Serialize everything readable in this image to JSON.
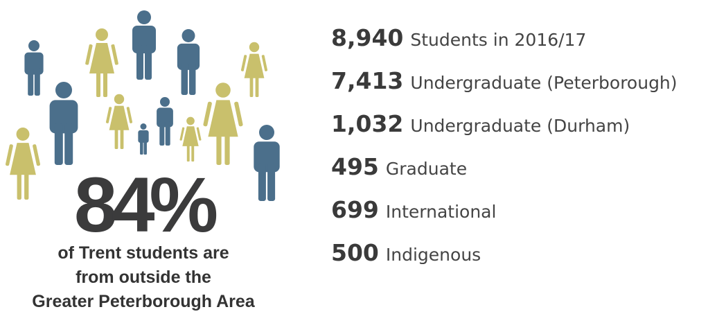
{
  "highlight": {
    "value": "84%",
    "caption": [
      "of Trent students are",
      "from outside the",
      "Greater Peterborough Area"
    ]
  },
  "stats": [
    {
      "number": "8,940",
      "label": "Students in 2016/17"
    },
    {
      "number": "7,413",
      "label": "Undergraduate (Peterborough)"
    },
    {
      "number": "1,032",
      "label": "Undergraduate (Durham)"
    },
    {
      "number": "495",
      "label": "Graduate"
    },
    {
      "number": "699",
      "label": "International"
    },
    {
      "number": "500",
      "label": "Indigenous"
    }
  ]
}
